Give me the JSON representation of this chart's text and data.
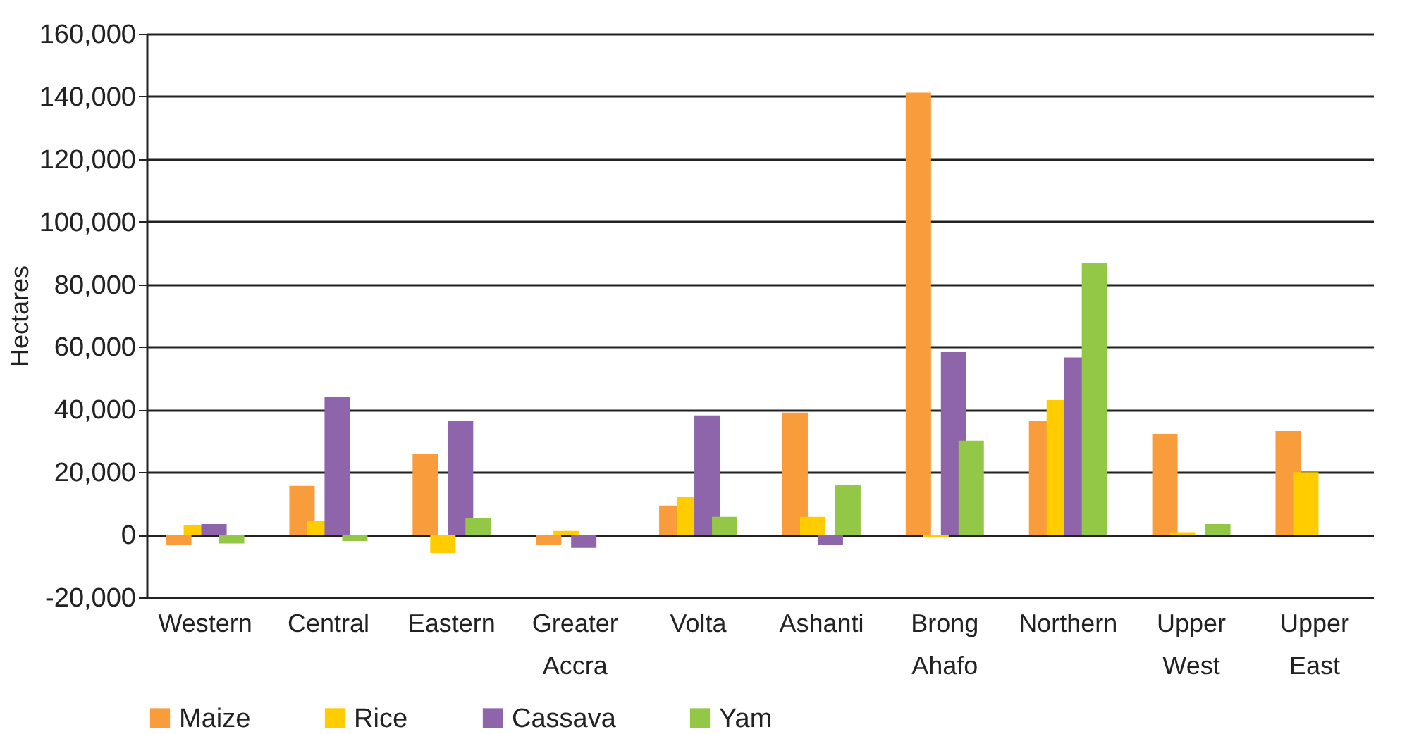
{
  "chart_data": {
    "type": "bar",
    "ylabel": "Hectares",
    "categories": [
      "Western",
      "Central",
      "Eastern",
      "Greater Accra",
      "Volta",
      "Ashanti",
      "Brong Ahafo",
      "Northern",
      "Upper West",
      "Upper East"
    ],
    "series": [
      {
        "name": "Maize",
        "color": "#f89c3c",
        "values": [
          -3300,
          15600,
          25900,
          -3300,
          9300,
          39000,
          141200,
          36300,
          32200,
          33100
        ]
      },
      {
        "name": "Rice",
        "color": "#ffcc00",
        "values": [
          3000,
          4300,
          -5800,
          1200,
          12000,
          5700,
          -900,
          43000,
          800,
          20000
        ]
      },
      {
        "name": "Cassava",
        "color": "#8e65aa",
        "values": [
          3400,
          43900,
          36300,
          -4200,
          38100,
          -3300,
          58400,
          56600,
          null,
          null
        ]
      },
      {
        "name": "Yam",
        "color": "#92c846",
        "values": [
          -2800,
          -2000,
          5200,
          null,
          5700,
          16000,
          30000,
          86700,
          3400,
          null
        ]
      }
    ],
    "ylim": [
      -20000,
      160000
    ],
    "yticks": [
      {
        "value": -20000,
        "label": "-20,000"
      },
      0,
      {
        "value": 20000,
        "label": "20,000"
      },
      {
        "value": 40000,
        "label": "40,000"
      },
      {
        "value": 60000,
        "label": "60,000"
      },
      {
        "value": 80000,
        "label": "80,000"
      },
      {
        "value": 100000,
        "label": "100,000"
      },
      {
        "value": 120000,
        "label": "120,000"
      },
      {
        "value": 140000,
        "label": "140,000"
      },
      {
        "value": 160000,
        "label": "160,000"
      }
    ],
    "grid": "y",
    "legend": "bottom left"
  }
}
